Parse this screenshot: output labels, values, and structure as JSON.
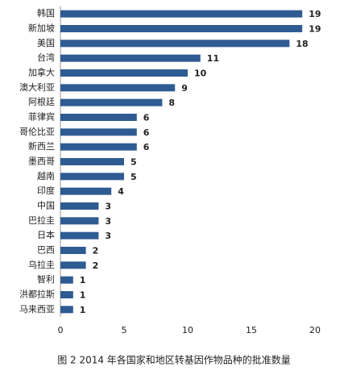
{
  "chart_data": {
    "type": "bar",
    "orientation": "horizontal",
    "title": "图 2 2014 年各国家和地区转基因作物品种的批准数量",
    "categories": [
      "韩国",
      "新加坡",
      "美国",
      "台湾",
      "加拿大",
      "澳大利亚",
      "阿根廷",
      "菲律宾",
      "哥伦比亚",
      "新西兰",
      "墨西哥",
      "越南",
      "印度",
      "中国",
      "巴拉圭",
      "日本",
      "巴西",
      "乌拉圭",
      "智利",
      "洪都拉斯",
      "马来西亚"
    ],
    "values": [
      19,
      19,
      18,
      11,
      10,
      9,
      8,
      6,
      6,
      6,
      5,
      5,
      4,
      3,
      3,
      3,
      2,
      2,
      1,
      1,
      1
    ],
    "color": "#2f5b93",
    "xlim": [
      0,
      20
    ],
    "xticks": [
      0,
      5,
      10,
      15,
      20
    ],
    "grid": false
  }
}
